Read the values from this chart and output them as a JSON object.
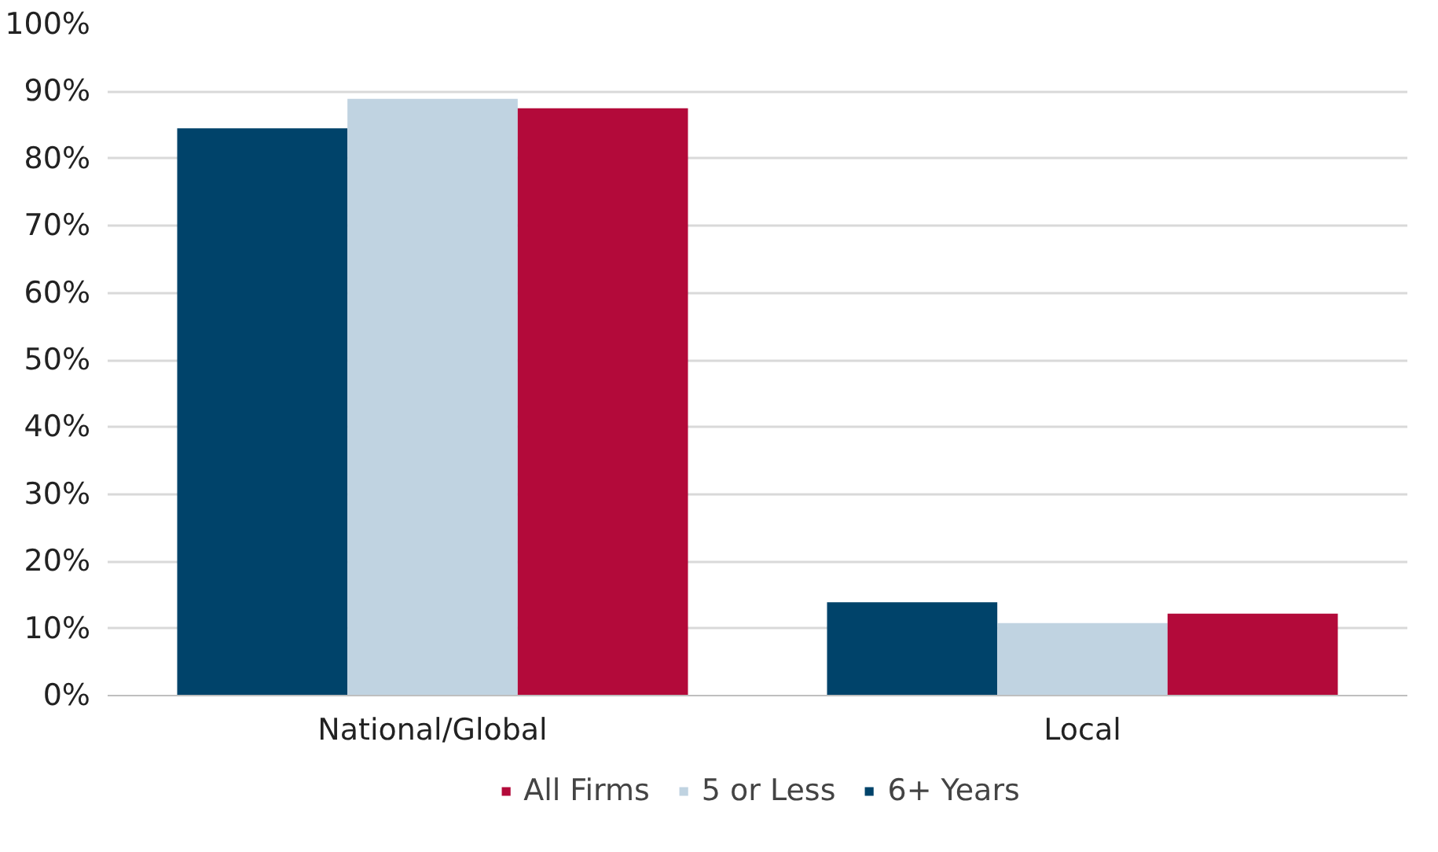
{
  "chart_data": {
    "type": "bar",
    "categories": [
      "National/Global",
      "Local"
    ],
    "series": [
      {
        "name": "6+ Years",
        "color": "#00436a",
        "values": [
          84.5,
          13.9
        ]
      },
      {
        "name": "5 or Less",
        "color": "#c0d3e1",
        "values": [
          88.9,
          10.8
        ]
      },
      {
        "name": "All Firms",
        "color": "#b30a3a",
        "values": [
          87.5,
          12.2
        ]
      }
    ],
    "ylim": [
      0,
      100
    ],
    "yticks": [
      {
        "value": 0,
        "label": "0%"
      },
      {
        "value": 10,
        "label": "10%"
      },
      {
        "value": 20,
        "label": "20%"
      },
      {
        "value": 30,
        "label": "30%"
      },
      {
        "value": 40,
        "label": "40%"
      },
      {
        "value": 50,
        "label": "50%"
      },
      {
        "value": 60,
        "label": "60%"
      },
      {
        "value": 70,
        "label": "70%"
      },
      {
        "value": 80,
        "label": "80%"
      },
      {
        "value": 90,
        "label": "90%"
      },
      {
        "value": 100,
        "label": "100%"
      }
    ],
    "grid": "y",
    "legend": "bottom"
  }
}
